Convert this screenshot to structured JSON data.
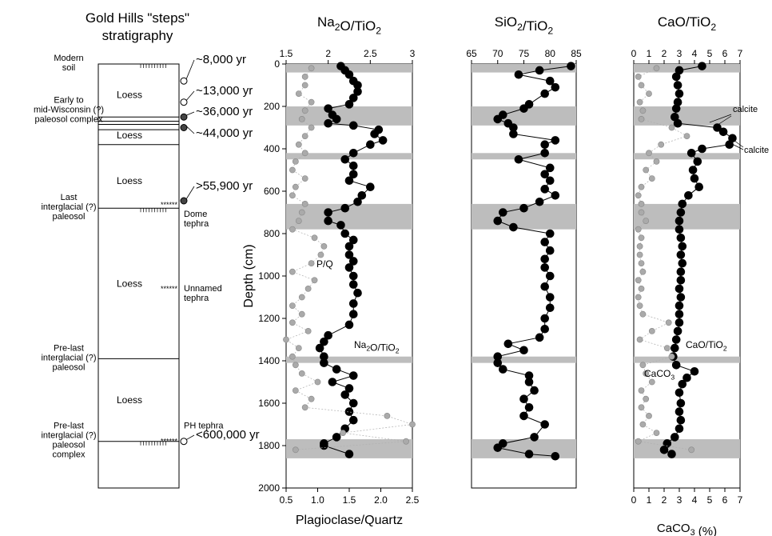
{
  "strat": {
    "title1": "Gold Hills \"steps\"",
    "title2": "stratigraphy",
    "units": [
      {
        "label": "Loess",
        "top": 20,
        "bottom": 270
      },
      {
        "label": "Loess",
        "top": 290,
        "bottom": 380
      },
      {
        "label": "Loess",
        "top": 420,
        "bottom": 680
      },
      {
        "label": "Loess",
        "top": 680,
        "bottom": 1390
      },
      {
        "label": "Loess",
        "top": 1390,
        "bottom": 1780
      }
    ],
    "labels_left": [
      {
        "lines": [
          "Modern",
          "soil"
        ],
        "depth": 0
      },
      {
        "lines": [
          "Early to",
          "mid-Wisconsin (?)",
          "paleosol complex"
        ],
        "depth": 220
      },
      {
        "lines": [
          "Last",
          "interglacial (?)",
          "paleosol"
        ],
        "depth": 680
      },
      {
        "lines": [
          "Pre-last",
          "interglacial (?)",
          "paleosol"
        ],
        "depth": 1390
      },
      {
        "lines": [
          "Pre-last",
          "interglacial (?)",
          "paleosol",
          "complex"
        ],
        "depth": 1780
      }
    ],
    "ages": [
      {
        "text": "~8,000 yr",
        "depth": 80
      },
      {
        "text": "~13,000 yr",
        "depth": 180
      },
      {
        "text": "~36,000 yr",
        "depth": 250
      },
      {
        "text": "~44,000 yr",
        "depth": 300
      },
      {
        "text": ">55,900 yr",
        "depth": 665
      },
      {
        "text": "<600,000 yr",
        "depth": 1780
      }
    ],
    "tephras": [
      {
        "lines": [
          "Dome",
          "tephra"
        ],
        "depth": 665
      },
      {
        "lines": [
          "Unnamed",
          "tephra"
        ],
        "depth": 1060
      },
      {
        "lines": [
          "PH tephra"
        ],
        "depth": 1780
      }
    ]
  },
  "chart_data": [
    {
      "type": "scatter",
      "title": "Na2O/TiO2",
      "xlim": [
        1.5,
        3
      ],
      "xticks": [
        1.5,
        2,
        2.5,
        3
      ],
      "bottom_xlim": [
        0.5,
        2.5
      ],
      "bottom_xticks": [
        0.5,
        1.0,
        1.5,
        2.0,
        2.5
      ],
      "xlabel": "Plagioclase/Quartz",
      "ylabel": "Depth (cm)",
      "ylim": [
        0,
        2000
      ],
      "yticks": [
        0,
        200,
        400,
        600,
        800,
        1000,
        1200,
        1400,
        1600,
        1800,
        2000
      ],
      "shaded_intervals": [
        [
          0,
          40
        ],
        [
          200,
          290
        ],
        [
          420,
          450
        ],
        [
          660,
          780
        ],
        [
          1380,
          1410
        ],
        [
          1770,
          1860
        ]
      ],
      "series": [
        {
          "name": "Na2O/TiO2",
          "color": "#000000",
          "depth": [
            10,
            30,
            50,
            80,
            100,
            130,
            160,
            190,
            210,
            240,
            260,
            280,
            290,
            310,
            330,
            360,
            380,
            420,
            450,
            480,
            520,
            550,
            580,
            620,
            650,
            680,
            700,
            740,
            760,
            800,
            830,
            860,
            900,
            930,
            960,
            1000,
            1040,
            1080,
            1130,
            1180,
            1230,
            1280,
            1310,
            1340,
            1380,
            1410,
            1440,
            1470,
            1500,
            1530,
            1560,
            1600,
            1640,
            1680,
            1720,
            1760,
            1790,
            1800,
            1840
          ],
          "values": [
            2.15,
            2.2,
            2.25,
            2.3,
            2.35,
            2.35,
            2.3,
            2.25,
            2.0,
            2.05,
            2.1,
            2.0,
            2.3,
            2.6,
            2.55,
            2.65,
            2.5,
            2.3,
            2.2,
            2.3,
            2.3,
            2.25,
            2.5,
            2.4,
            2.35,
            2.2,
            2.0,
            2.0,
            2.15,
            2.2,
            2.3,
            2.25,
            2.25,
            2.3,
            2.25,
            2.3,
            2.3,
            2.35,
            2.3,
            2.3,
            2.25,
            2.0,
            1.95,
            1.9,
            1.95,
            1.95,
            2.1,
            2.3,
            2.05,
            2.25,
            2.2,
            2.3,
            2.25,
            2.3,
            2.2,
            2.1,
            1.95,
            1.95,
            2.25
          ]
        },
        {
          "name": "P/Q",
          "color": "#a6a6a6",
          "depth": [
            20,
            60,
            100,
            140,
            180,
            220,
            260,
            300,
            340,
            380,
            420,
            460,
            500,
            540,
            580,
            620,
            660,
            700,
            740,
            780,
            820,
            860,
            900,
            940,
            980,
            1020,
            1060,
            1100,
            1140,
            1180,
            1220,
            1260,
            1300,
            1340,
            1380,
            1420,
            1460,
            1500,
            1540,
            1580,
            1620,
            1660,
            1700,
            1740,
            1780,
            1820
          ],
          "values": [
            0.9,
            0.8,
            0.8,
            0.7,
            0.9,
            0.8,
            0.75,
            0.9,
            0.8,
            0.7,
            0.8,
            0.65,
            0.6,
            0.8,
            0.65,
            0.6,
            0.8,
            0.75,
            0.7,
            0.6,
            0.95,
            1.1,
            1.05,
            0.9,
            0.6,
            0.95,
            0.85,
            0.75,
            0.6,
            0.75,
            0.6,
            0.85,
            0.5,
            0.7,
            0.6,
            0.65,
            0.75,
            1.0,
            0.65,
            0.9,
            0.8,
            2.1,
            2.5,
            1.4,
            2.4,
            0.65
          ]
        }
      ],
      "annotations": [
        {
          "text": "P/Q",
          "depth": 960
        },
        {
          "text": "Na2O/TiO2",
          "depth": 1330
        }
      ]
    },
    {
      "type": "line",
      "title": "SiO2/TiO2",
      "xlim": [
        65,
        85
      ],
      "xticks": [
        65,
        70,
        75,
        80,
        85
      ],
      "ylim": [
        0,
        2000
      ],
      "shaded_intervals": [
        [
          0,
          40
        ],
        [
          200,
          290
        ],
        [
          420,
          450
        ],
        [
          660,
          780
        ],
        [
          1380,
          1410
        ],
        [
          1770,
          1860
        ]
      ],
      "series": [
        {
          "name": "SiO2/TiO2",
          "depth": [
            10,
            30,
            50,
            80,
            110,
            140,
            190,
            210,
            240,
            260,
            280,
            300,
            330,
            360,
            380,
            420,
            450,
            490,
            520,
            550,
            590,
            620,
            650,
            680,
            700,
            740,
            770,
            800,
            840,
            880,
            920,
            960,
            1000,
            1050,
            1100,
            1150,
            1200,
            1250,
            1290,
            1320,
            1350,
            1380,
            1410,
            1440,
            1470,
            1500,
            1540,
            1580,
            1620,
            1660,
            1700,
            1760,
            1790,
            1810,
            1840,
            1850
          ],
          "values": [
            84,
            78,
            74,
            80,
            81,
            79,
            76,
            75,
            71,
            70,
            72,
            73,
            73,
            81,
            79,
            79,
            74,
            80,
            79,
            80,
            79,
            81,
            78,
            75,
            71,
            70,
            73,
            80,
            79,
            80,
            79,
            79,
            80,
            79,
            80,
            80,
            79,
            79,
            78,
            72,
            75,
            70,
            70,
            71,
            76,
            76,
            77,
            75,
            76,
            75,
            79,
            77,
            71,
            70,
            76,
            81
          ]
        }
      ]
    },
    {
      "type": "line",
      "title": "CaO/TiO2",
      "xlim": [
        0,
        7
      ],
      "xticks": [
        0,
        1,
        2,
        3,
        4,
        5,
        6,
        7
      ],
      "bottom_xlim": [
        0,
        7
      ],
      "bottom_xticks": [
        0,
        1,
        2,
        3,
        4,
        5,
        6,
        7
      ],
      "xlabel": "CaCO3 (%)",
      "ylim": [
        0,
        2000
      ],
      "shaded_intervals": [
        [
          0,
          40
        ],
        [
          200,
          290
        ],
        [
          420,
          450
        ],
        [
          660,
          780
        ],
        [
          1380,
          1410
        ],
        [
          1770,
          1860
        ]
      ],
      "series": [
        {
          "name": "CaO/TiO2",
          "color": "#000000",
          "depth": [
            10,
            30,
            60,
            100,
            140,
            180,
            210,
            250,
            280,
            300,
            320,
            350,
            380,
            400,
            420,
            460,
            500,
            540,
            580,
            620,
            660,
            700,
            740,
            780,
            820,
            860,
            900,
            940,
            980,
            1020,
            1060,
            1100,
            1140,
            1180,
            1220,
            1260,
            1300,
            1340,
            1380,
            1420,
            1450,
            1480,
            1510,
            1550,
            1600,
            1640,
            1680,
            1720,
            1760,
            1790,
            1820,
            1840
          ],
          "values": [
            4.5,
            3.0,
            2.8,
            2.9,
            3.0,
            2.9,
            2.8,
            2.7,
            2.9,
            5.5,
            5.9,
            6.5,
            6.3,
            4.5,
            3.8,
            4.2,
            3.9,
            4.0,
            4.3,
            3.6,
            3.2,
            3.1,
            3.0,
            3.0,
            3.1,
            3.2,
            3.1,
            3.2,
            3.1,
            3.1,
            3.0,
            3.1,
            3.0,
            3.0,
            3.0,
            2.9,
            2.8,
            2.7,
            2.6,
            2.8,
            4.0,
            3.5,
            3.2,
            3.0,
            3.1,
            3.0,
            3.1,
            3.0,
            2.7,
            2.2,
            2.0,
            2.5
          ]
        },
        {
          "name": "CaCO3",
          "color": "#a6a6a6",
          "depth": [
            20,
            60,
            100,
            140,
            180,
            220,
            260,
            300,
            340,
            380,
            420,
            460,
            500,
            540,
            580,
            620,
            660,
            700,
            740,
            780,
            820,
            860,
            900,
            940,
            980,
            1020,
            1060,
            1100,
            1140,
            1180,
            1220,
            1260,
            1300,
            1340,
            1380,
            1420,
            1460,
            1500,
            1540,
            1580,
            1620,
            1660,
            1700,
            1740,
            1780,
            1820
          ],
          "values": [
            1.5,
            0.3,
            0.5,
            1.0,
            0.4,
            0.6,
            0.5,
            2.5,
            3.5,
            1.8,
            1.0,
            1.5,
            0.8,
            1.2,
            0.5,
            0.3,
            0.5,
            0.5,
            0.8,
            0.3,
            0.5,
            0.4,
            0.4,
            0.5,
            0.6,
            0.3,
            0.5,
            0.3,
            0.4,
            0.6,
            2.3,
            1.2,
            0.4,
            2.2,
            2.5,
            0.6,
            0.8,
            1.2,
            0.5,
            0.8,
            0.5,
            1.0,
            0.6,
            1.5,
            0.3,
            3.8
          ]
        }
      ],
      "annotations": [
        {
          "text": "calcite",
          "depth": 280
        },
        {
          "text": "calcite",
          "depth": 400
        },
        {
          "text": "CaO/TiO2",
          "depth": 1330
        },
        {
          "text": "CaCO3",
          "depth": 1460
        }
      ]
    }
  ]
}
